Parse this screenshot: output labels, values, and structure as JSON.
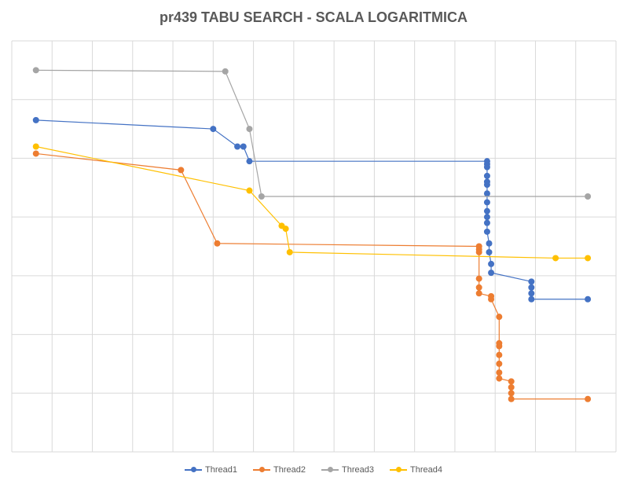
{
  "chart_data": {
    "type": "line",
    "title": "pr439 TABU SEARCH - SCALA LOGARITMICA",
    "xlabel": "",
    "ylabel": "",
    "xlim": [
      0,
      15
    ],
    "ylim": [
      0,
      7
    ],
    "grid": true,
    "legend_position": "bottom",
    "series": [
      {
        "name": "Thread1",
        "color": "#4472C4",
        "points": [
          [
            0.6,
            5.65
          ],
          [
            5.0,
            5.5
          ],
          [
            5.6,
            5.2
          ],
          [
            5.75,
            5.2
          ],
          [
            5.9,
            4.95
          ],
          [
            11.8,
            4.95
          ],
          [
            11.8,
            4.9
          ],
          [
            11.8,
            4.85
          ],
          [
            11.8,
            4.7
          ],
          [
            11.8,
            4.6
          ],
          [
            11.8,
            4.55
          ],
          [
            11.8,
            4.4
          ],
          [
            11.8,
            4.25
          ],
          [
            11.8,
            4.1
          ],
          [
            11.8,
            4.0
          ],
          [
            11.8,
            3.9
          ],
          [
            11.8,
            3.75
          ],
          [
            11.85,
            3.55
          ],
          [
            11.85,
            3.4
          ],
          [
            11.9,
            3.2
          ],
          [
            11.9,
            3.05
          ],
          [
            12.9,
            2.9
          ],
          [
            12.9,
            2.8
          ],
          [
            12.9,
            2.7
          ],
          [
            12.9,
            2.6
          ],
          [
            14.3,
            2.6
          ]
        ]
      },
      {
        "name": "Thread2",
        "color": "#ED7D31",
        "points": [
          [
            0.6,
            5.08
          ],
          [
            4.2,
            4.8
          ],
          [
            5.1,
            3.55
          ],
          [
            11.6,
            3.5
          ],
          [
            11.6,
            3.45
          ],
          [
            11.6,
            3.4
          ],
          [
            11.6,
            2.95
          ],
          [
            11.6,
            2.8
          ],
          [
            11.6,
            2.7
          ],
          [
            11.9,
            2.65
          ],
          [
            11.9,
            2.6
          ],
          [
            12.1,
            2.3
          ],
          [
            12.1,
            1.85
          ],
          [
            12.1,
            1.8
          ],
          [
            12.1,
            1.65
          ],
          [
            12.1,
            1.5
          ],
          [
            12.1,
            1.35
          ],
          [
            12.1,
            1.25
          ],
          [
            12.4,
            1.2
          ],
          [
            12.4,
            1.1
          ],
          [
            12.4,
            1.0
          ],
          [
            12.4,
            0.9
          ],
          [
            14.3,
            0.9
          ]
        ]
      },
      {
        "name": "Thread3",
        "color": "#A5A5A5",
        "points": [
          [
            0.6,
            6.5
          ],
          [
            5.3,
            6.48
          ],
          [
            5.9,
            5.5
          ],
          [
            6.2,
            4.35
          ],
          [
            14.3,
            4.35
          ]
        ]
      },
      {
        "name": "Thread4",
        "color": "#FFC000",
        "points": [
          [
            0.6,
            5.2
          ],
          [
            5.9,
            4.45
          ],
          [
            6.7,
            3.85
          ],
          [
            6.8,
            3.8
          ],
          [
            6.9,
            3.4
          ],
          [
            13.5,
            3.3
          ],
          [
            14.3,
            3.3
          ]
        ]
      }
    ]
  }
}
